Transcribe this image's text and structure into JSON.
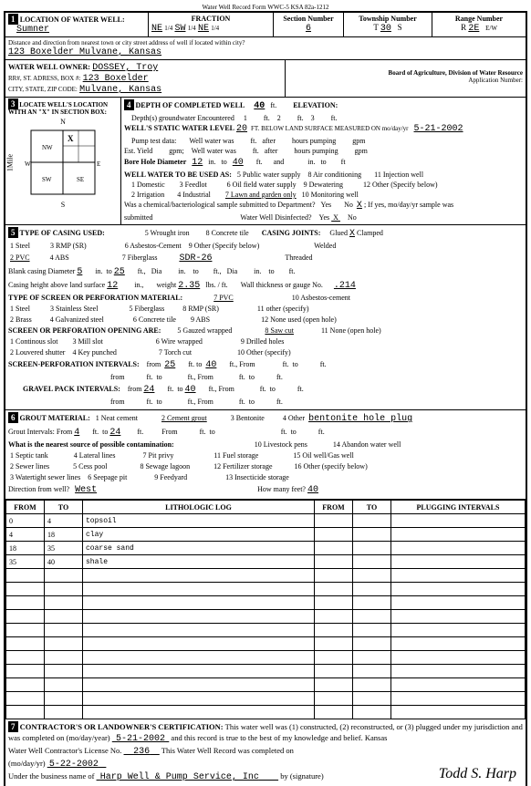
{
  "form_header": "Water Well Record    Form WWC-5    KSA 82a-1212",
  "location": {
    "label": "LOCATION OF WATER WELL:",
    "county": "Sumner",
    "fraction_label": "FRACTION",
    "f1": "NE",
    "f2": "SW",
    "f3": "NE",
    "section_label": "Section Number",
    "section": "6",
    "township_label": "Township Number",
    "township": "30",
    "township_dir": "S",
    "range_label": "Range Number",
    "range": "2E",
    "range_dir": "E/W"
  },
  "distance_label": "Distance and direction from nearest town or city  street address of well if located within city?",
  "address": "123 Boxelder            Mulvane, Kansas",
  "owner": {
    "label": "WATER WELL OWNER:",
    "name": "DOSSEY, Troy",
    "rr_label": "RR#, ST. ADRESS, BOX #:",
    "rr": "123 Boxelder",
    "city_label": "CITY, STATE, ZIP CODE:",
    "city": "Mulvane, Kansas"
  },
  "board": "Board of Agriculture, Division of Water Resource",
  "app": "Application Number:",
  "section2": "LOCATE WELL'S LOCATION WITH AN \"X\" IN SECTION BOX:",
  "depth": {
    "label": "4   DEPTH OF COMPLETED WELL",
    "value": "40",
    "unit": "ft.",
    "elevation_label": "ELEVATION:",
    "depths_label": "Depth(s) groundwater Encountered",
    "d1": "1",
    "d2": "2",
    "d3": "3",
    "static_label": "WELL'S STATIC WATER LEVEL",
    "static": "20",
    "static_unit": "FT. BELOW  LAND  SURFACE  MEASURED  ON  mo/day/yr",
    "static_date": "5-21-2002",
    "pump_label": "Pump test data:",
    "well_water": "Well  water  was",
    "after": "after",
    "hours_pumping": "hours  pumping",
    "gpm": "gpm",
    "est_yield": "Est.  Yield",
    "gpm2": "gpm;",
    "bore_label": "Bore Hole Diameter",
    "bore1": "12",
    "in": "in.",
    "to": "to",
    "bore2": "40",
    "and": "and",
    "use_label": "WELL WATER TO BE USED AS:",
    "uses": [
      "1 Domestic",
      "2 Irrigation",
      "3 Feedlot",
      "4 Industrial",
      "5 Public water supply",
      "6 Oil field water supply",
      "7 Lawn and garden only",
      "8 Air conditioning",
      "9 Dewatering",
      "10 Monitoring well",
      "11 Injection well",
      "12 Other (Specify below)"
    ],
    "chem_label": "Was a chemical/bacteriological sample submitted to Department?",
    "yes": "Yes",
    "no": "No",
    "x": "X",
    "ifyes": "; If yes, mo/day/yr sample was",
    "submitted": "submitted",
    "disinfected": "Water Well Disinfected?"
  },
  "casing": {
    "label": "5   TYPE OF CASING USED:",
    "types": [
      "1 Steel",
      "2 PVC",
      "3 RMP (SR)",
      "4 ABS",
      "5 Wrought iron",
      "6 Asbestos-Cement",
      "7 Fiberglass",
      "8 Concrete tile",
      "9 Other (Specify below)",
      "SDR-26"
    ],
    "joints_label": "CASING JOINTS:",
    "glued": "Glued",
    "clamped": "Clamped",
    "welded": "Welded",
    "threaded": "Threaded",
    "x": "X",
    "blank": "Blank casing Diameter",
    "bd": "5",
    "bto": "25",
    "dia": "Dia",
    "height_label": "Casing height above land surface",
    "height": "12",
    "weight_label": "weight",
    "weight": "2.35",
    "lbsft": "lbs. / ft.",
    "wall_label": "Wall thickness or gauge No.",
    "wall": ".214",
    "screen_label": "TYPE OF SCREEN OR PERFORATION MATERIAL:",
    "screens": [
      "1 Steel",
      "2 Brass",
      "3 Stainless Steel",
      "4 Galvanized steel",
      "5 Fiberglass",
      "6 Concrete tile",
      "7 PVC",
      "8 RMP (SR)",
      "9 ABS",
      "10 Asbestos-cement",
      "11 other (specify)",
      "12 None used (open hole)"
    ],
    "open_label": "SCREEN OR PERFORATION OPENING ARE:",
    "opens": [
      "1 Continous slot",
      "2 Louvered shutter",
      "3 Mill slot",
      "4 Key punched",
      "5 Gauzed wrapped",
      "6 Wire wrapped",
      "7 Torch cut",
      "8 Saw cut",
      "9 Drilled holes",
      "10 Other  (specify)",
      "11 None (open hole)"
    ],
    "intervals_label": "SCREEN-PERFORATION  INTERVALS:",
    "si_from1": "25",
    "si_to1": "40",
    "gravel_label": "GRAVEL PACK INTERVALS:",
    "gi_from1": "24",
    "gi_to1": "40",
    "from": "from",
    "ft_to": "ft.  to",
    "ft_from": "ft., From"
  },
  "grout": {
    "label": "6   GROUT MATERIAL:",
    "types": [
      "1 Neat cement",
      "2 Cement grout",
      "3 Bentonite",
      "4 Other"
    ],
    "other": "bentonite hole plug",
    "intervals": "Grout Intervals:  From",
    "gi_from": "4",
    "gi_to": "24",
    "contam_label": "What is the nearest source of possible contamination:",
    "contam": [
      "1 Septic tank",
      "2 Sewer lines",
      "3 Watertight sewer lines",
      "4 Lateral lines",
      "5 Cess pool",
      "6 Seepage pit",
      "7 Pit privy",
      "8 Sewage lagoon",
      "9 Feedyard",
      "10 Livestock pens",
      "11 Fuel storage",
      "12 Fertilizer storage",
      "13 Insecticide storage",
      "14 Abandon water well",
      "15 Oil well/Gas well",
      "16 Other (specify below)"
    ],
    "dir_label": "Direction from well?",
    "dir": "West",
    "howmany_label": "How many feet?",
    "howmany": "40"
  },
  "log": {
    "headers": [
      "FROM",
      "TO",
      "LITHOLOGIC LOG",
      "FROM",
      "TO",
      "PLUGGING INTERVALS"
    ],
    "rows": [
      [
        "0",
        "4",
        "topsoil",
        "",
        "",
        ""
      ],
      [
        "4",
        "18",
        "clay",
        "",
        "",
        ""
      ],
      [
        "18",
        "35",
        "coarse sand",
        "",
        "",
        ""
      ],
      [
        "35",
        "40",
        "shale",
        "",
        "",
        ""
      ]
    ],
    "blank_rows": 11
  },
  "contractor": {
    "label": "7   CONTRACTOR'S OR LANDOWNER'S CERTIFICATION:",
    "text1": "This water well was (1) constructed, (2) reconstructed, or (3) plugged under my jurisdiction and",
    "text2": "was completed on (mo/day/year)",
    "date1": "5-21-2002",
    "text3": "and this record is true to the best of my knowledge and belief. Kansas",
    "text4": "Water Well Contractor's License No.",
    "license": "236",
    "text5": "This Water Well Record was completed on",
    "text6": "(mo/day/yr)",
    "date2": "5-22-2002",
    "text7": "Under the business name of",
    "business": "Harp Well & Pump Service, Inc",
    "text8": "by (signature)",
    "signature": "Todd S. Harp"
  }
}
